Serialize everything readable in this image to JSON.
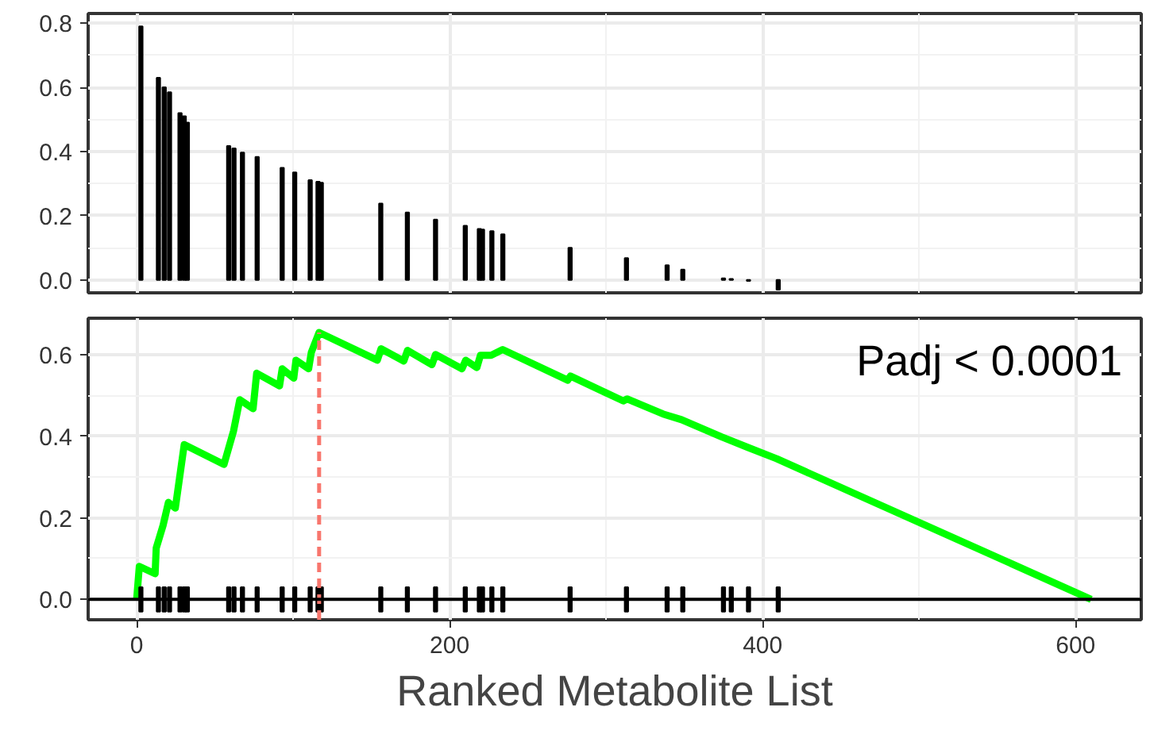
{
  "chart_data": [
    {
      "type": "bar",
      "color": "#000000",
      "x": [
        2.7,
        13.9,
        17.6,
        21,
        27.7,
        30.4,
        32.4,
        58.8,
        62.2,
        67.6,
        77,
        93,
        101,
        110.9,
        115.9,
        118,
        156,
        173,
        191,
        210,
        219,
        221,
        227,
        234,
        277,
        313,
        339,
        349,
        375,
        380,
        391,
        410
      ],
      "values": [
        0.79,
        0.63,
        0.6,
        0.585,
        0.52,
        0.51,
        0.49,
        0.417,
        0.41,
        0.397,
        0.383,
        0.349,
        0.335,
        0.311,
        0.306,
        0.303,
        0.238,
        0.21,
        0.188,
        0.169,
        0.159,
        0.157,
        0.152,
        0.142,
        0.1,
        0.068,
        0.046,
        0.032,
        0.005,
        0.003,
        -0.003,
        -0.03
      ],
      "xlim": [
        -31,
        642
      ],
      "ylim": [
        -0.04,
        0.83
      ],
      "yticks": [
        {
          "value": 0,
          "label": "0.0"
        },
        0.2,
        0.4,
        0.6,
        0.8
      ],
      "tick_labels": "y",
      "grid": true
    },
    {
      "type": "line",
      "xlabel": "Ranked Metabolite List",
      "annotations": [
        "Padj < 0.0001"
      ],
      "series": [
        {
          "type": "line",
          "color": "#00ff00",
          "x": [
            0,
            1.7,
            11.8,
            12.5,
            16.9,
            20.3,
            24.7,
            30.4,
            55.8,
            61.9,
            65.9,
            74.4,
            76.7,
            91.3,
            93,
            100.4,
            101.8,
            109.9,
            111.6,
            116.6,
            153.8,
            156.2,
            170.7,
            173.1,
            188.7,
            191,
            207.9,
            210.3,
            217.4,
            219.7,
            226.5,
            233.9,
            275.5,
            277.2,
            311,
            313.4,
            336.4,
            348.2,
            373.6,
            390.5,
            409.1,
            610
          ],
          "values": [
            0,
            0.081,
            0.063,
            0.126,
            0.182,
            0.238,
            0.224,
            0.38,
            0.331,
            0.413,
            0.49,
            0.468,
            0.555,
            0.524,
            0.566,
            0.543,
            0.587,
            0.566,
            0.606,
            0.655,
            0.587,
            0.615,
            0.585,
            0.611,
            0.576,
            0.601,
            0.566,
            0.587,
            0.569,
            0.599,
            0.599,
            0.613,
            0.538,
            0.548,
            0.487,
            0.492,
            0.455,
            0.441,
            0.399,
            0.373,
            0.345,
            0
          ]
        },
        {
          "type": "bar",
          "color": "#000000",
          "x": [
            2.7,
            13.9,
            17.6,
            21,
            27.7,
            30.4,
            32.4,
            58.8,
            62.2,
            67.6,
            77,
            93,
            101,
            110.9,
            115.9,
            118,
            156,
            173,
            191,
            210,
            219,
            221,
            227,
            234,
            277,
            313,
            339,
            349,
            375,
            380,
            391,
            410
          ],
          "base": [
            -0.03,
            -0.03,
            -0.03,
            -0.03,
            -0.03,
            -0.03,
            -0.03,
            -0.03,
            -0.03,
            -0.03,
            -0.03,
            -0.03,
            -0.03,
            -0.03,
            -0.03,
            -0.03,
            -0.03,
            -0.03,
            -0.03,
            -0.03,
            -0.03,
            -0.03,
            -0.03,
            -0.03,
            -0.03,
            -0.03,
            -0.03,
            -0.03,
            -0.03,
            -0.03,
            -0.03,
            -0.03
          ],
          "values": [
            0.06,
            0.06,
            0.06,
            0.06,
            0.06,
            0.06,
            0.06,
            0.06,
            0.06,
            0.06,
            0.06,
            0.06,
            0.06,
            0.06,
            0.06,
            0.06,
            0.06,
            0.06,
            0.06,
            0.06,
            0.06,
            0.06,
            0.06,
            0.06,
            0.06,
            0.06,
            0.06,
            0.06,
            0.06,
            0.06,
            0.06,
            0.06
          ]
        }
      ],
      "ref_lines": [
        {
          "axis": "y",
          "value": 0,
          "color": "#000000"
        },
        {
          "axis": "x",
          "value": 116.6,
          "color": "#f8766d",
          "line_style": "dashed"
        }
      ],
      "xlim": [
        -31,
        642
      ],
      "xticks": [
        0,
        200,
        400,
        600
      ],
      "ylim": [
        -0.05,
        0.69
      ],
      "yticks": [
        {
          "value": 0,
          "label": "0.0"
        },
        0.2,
        0.4,
        0.6
      ],
      "grid": true
    }
  ]
}
